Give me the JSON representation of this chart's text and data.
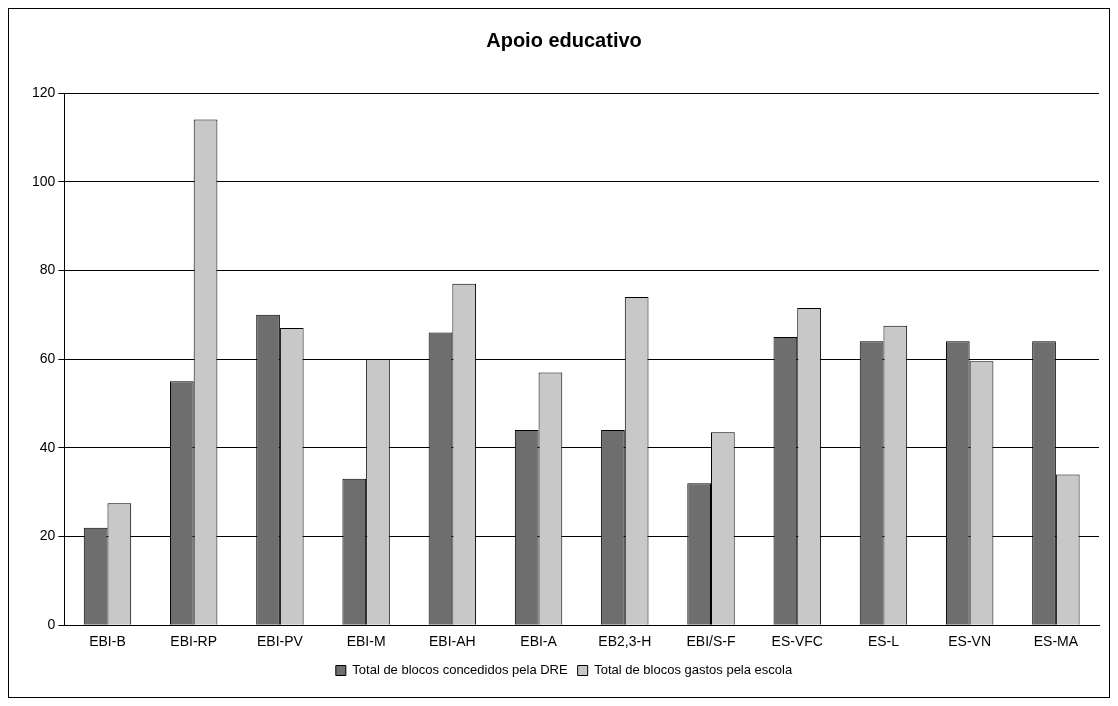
{
  "chart_data": {
    "type": "bar",
    "title": "Apoio educativo",
    "categories": [
      "EBI-B",
      "EBI-RP",
      "EBI-PV",
      "EBI-M",
      "EBI-AH",
      "EBI-A",
      "EB2,3-H",
      "EBI/S-F",
      "ES-VFC",
      "ES-L",
      "ES-VN",
      "ES-MA"
    ],
    "series": [
      {
        "name": "Total de blocos concedidos pela DRE",
        "color": "#6e6e6e",
        "values": [
          22,
          55,
          70,
          33,
          66,
          44,
          44,
          32,
          65,
          64,
          64,
          64
        ]
      },
      {
        "name": "Total de blocos gastos pela escola",
        "color": "#c8c8c8",
        "values": [
          27.5,
          114,
          67,
          60,
          77,
          57,
          74,
          43.5,
          71.5,
          67.5,
          59.5,
          34
        ]
      }
    ],
    "ylim": [
      0,
      120
    ],
    "yticks": [
      0,
      20,
      40,
      60,
      80,
      100,
      120
    ],
    "grid": "y",
    "legend": "bottom"
  }
}
